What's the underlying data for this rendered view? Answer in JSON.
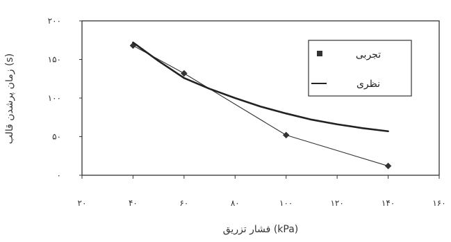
{
  "chart_data": {
    "type": "line",
    "xlabel": "فشار تزریق (kPa)",
    "ylabel": "زمان پرشدن قالب (s)",
    "xlim": [
      20,
      160
    ],
    "ylim": [
      0,
      200
    ],
    "x_ticks": [
      20,
      40,
      60,
      80,
      100,
      120,
      140,
      160
    ],
    "x_tick_labels": [
      "۲۰",
      "۴۰",
      "۶۰",
      "۸۰",
      "۱۰۰",
      "۱۲۰",
      "۱۴۰",
      "۱۶۰"
    ],
    "y_ticks": [
      0,
      50,
      100,
      150,
      200
    ],
    "y_tick_labels": [
      "۰",
      "۵۰",
      "۱۰۰",
      "۱۵۰",
      "۲۰۰"
    ],
    "grid": false,
    "legend_position": "top-right",
    "series": [
      {
        "name": "تجربی",
        "marker": "diamond",
        "color": "#333333",
        "x": [
          40,
          60,
          100,
          140
        ],
        "y": [
          168,
          132,
          52,
          12
        ]
      },
      {
        "name": "نظری",
        "marker": "none",
        "color": "#222222",
        "x": [
          40,
          50,
          60,
          70,
          80,
          90,
          100,
          110,
          120,
          130,
          140
        ],
        "y": [
          172,
          148,
          126,
          112,
          100,
          89,
          80,
          72,
          66,
          61,
          57
        ]
      }
    ]
  }
}
